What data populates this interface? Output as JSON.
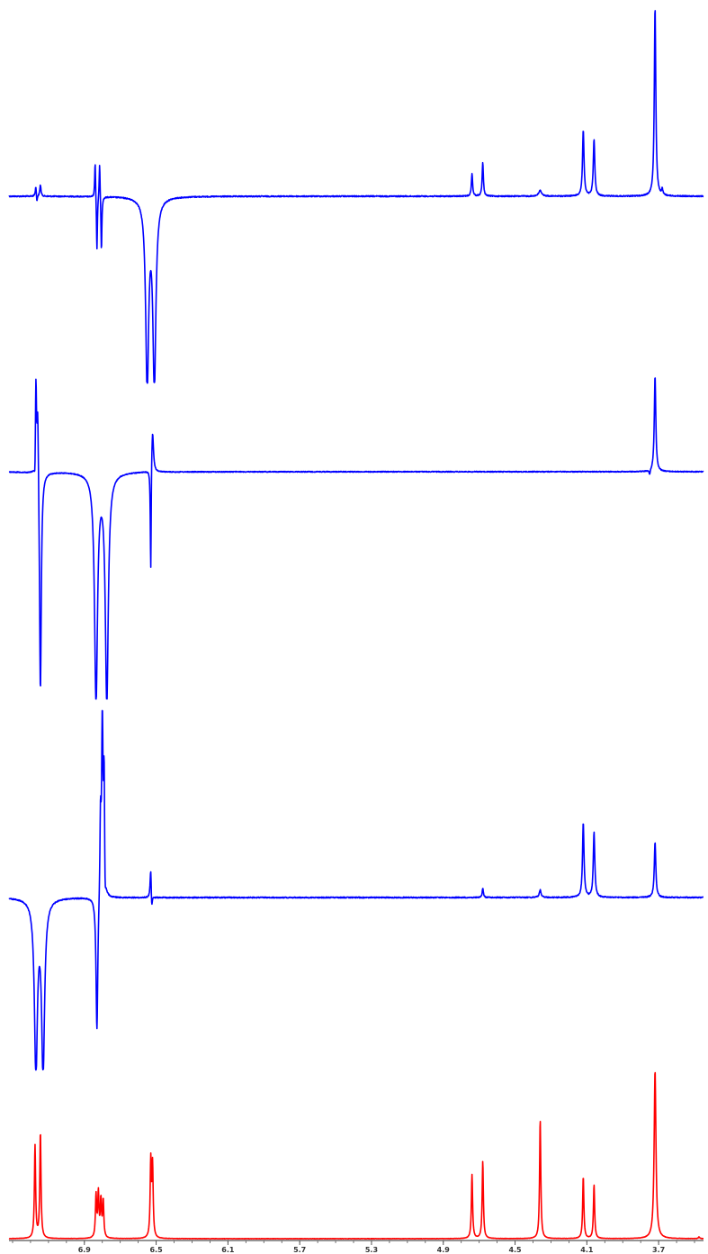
{
  "chart_data": {
    "type": "line",
    "title": "",
    "xlabel": "",
    "ylabel": "",
    "x_axis": {
      "reversed": true,
      "xlim": [
        7.32,
        3.45
      ],
      "tick_values": [
        6.9,
        6.5,
        6.1,
        5.7,
        5.3,
        4.9,
        4.5,
        4.1,
        3.7
      ],
      "tick_labels": [
        "6.9",
        "6.5",
        "6.1",
        "5.7",
        "5.3",
        "4.9",
        "4.5",
        "4.1",
        "3.7"
      ]
    },
    "grid": false,
    "legend": "none",
    "colors": {
      "spectrum_1d": "#ff0000",
      "nOe_difference": "#0000ff",
      "axis": "#555555"
    },
    "series": [
      {
        "kind": "selective_1D_difference",
        "color": "#0000ff",
        "peaks": [
          {
            "ppm": 7.17,
            "height": 0.06,
            "width": 0.004
          },
          {
            "ppm": 7.145,
            "height": 0.06,
            "width": 0.004
          },
          {
            "ppm": 7.165,
            "height": -0.05,
            "width": 0.003
          },
          {
            "ppm": 6.84,
            "height": 0.2,
            "width": 0.003
          },
          {
            "ppm": 6.815,
            "height": 0.2,
            "width": 0.003
          },
          {
            "ppm": 6.83,
            "height": -0.3,
            "width": 0.003
          },
          {
            "ppm": 6.805,
            "height": -0.3,
            "width": 0.003
          },
          {
            "ppm": 6.55,
            "height": -1.0,
            "width": 0.01
          },
          {
            "ppm": 6.51,
            "height": -1.0,
            "width": 0.01
          },
          {
            "ppm": 4.74,
            "height": 0.12,
            "width": 0.004
          },
          {
            "ppm": 4.68,
            "height": 0.18,
            "width": 0.004
          },
          {
            "ppm": 4.36,
            "height": 0.03,
            "width": 0.01
          },
          {
            "ppm": 4.12,
            "height": 0.35,
            "width": 0.005
          },
          {
            "ppm": 4.06,
            "height": 0.3,
            "width": 0.005
          },
          {
            "ppm": 3.72,
            "height": 1.0,
            "width": 0.005
          },
          {
            "ppm": 3.68,
            "height": 0.03,
            "width": 0.004
          }
        ]
      },
      {
        "kind": "selective_1D_difference",
        "color": "#0000ff",
        "peaks": [
          {
            "ppm": 7.17,
            "height": 0.7,
            "width": 0.004
          },
          {
            "ppm": 7.16,
            "height": 0.45,
            "width": 0.004
          },
          {
            "ppm": 7.175,
            "height": -0.2,
            "width": 0.004
          },
          {
            "ppm": 7.145,
            "height": -1.0,
            "width": 0.006
          },
          {
            "ppm": 6.835,
            "height": -1.0,
            "width": 0.01
          },
          {
            "ppm": 6.775,
            "height": -1.0,
            "width": 0.01
          },
          {
            "ppm": 6.52,
            "height": 0.3,
            "width": 0.006
          },
          {
            "ppm": 6.53,
            "height": -0.5,
            "width": 0.003
          },
          {
            "ppm": 3.72,
            "height": 0.65,
            "width": 0.005
          },
          {
            "ppm": 3.75,
            "height": -0.03,
            "width": 0.004
          }
        ]
      },
      {
        "kind": "selective_1D_difference",
        "color": "#0000ff",
        "peaks": [
          {
            "ppm": 7.17,
            "height": -1.0,
            "width": 0.01
          },
          {
            "ppm": 7.13,
            "height": -1.0,
            "width": 0.01
          },
          {
            "ppm": 6.8,
            "height": 1.0,
            "width": 0.004
          },
          {
            "ppm": 6.79,
            "height": 0.7,
            "width": 0.004
          },
          {
            "ppm": 6.81,
            "height": 0.45,
            "width": 0.004
          },
          {
            "ppm": 6.83,
            "height": -0.8,
            "width": 0.006
          },
          {
            "ppm": 6.785,
            "height": -0.2,
            "width": 0.004
          },
          {
            "ppm": 6.53,
            "height": 0.18,
            "width": 0.004
          },
          {
            "ppm": 6.525,
            "height": -0.1,
            "width": 0.004
          },
          {
            "ppm": 4.68,
            "height": 0.05,
            "width": 0.004
          },
          {
            "ppm": 4.36,
            "height": 0.04,
            "width": 0.006
          },
          {
            "ppm": 4.12,
            "height": 0.4,
            "width": 0.005
          },
          {
            "ppm": 4.06,
            "height": 0.35,
            "width": 0.005
          },
          {
            "ppm": 3.72,
            "height": 0.3,
            "width": 0.005
          }
        ]
      },
      {
        "kind": "1D_reference",
        "color": "#ff0000",
        "peaks": [
          {
            "ppm": 7.175,
            "height": 0.55,
            "width": 0.004
          },
          {
            "ppm": 7.145,
            "height": 0.63,
            "width": 0.004
          },
          {
            "ppm": 6.835,
            "height": 0.25,
            "width": 0.004
          },
          {
            "ppm": 6.822,
            "height": 0.26,
            "width": 0.004
          },
          {
            "ppm": 6.808,
            "height": 0.22,
            "width": 0.004
          },
          {
            "ppm": 6.795,
            "height": 0.22,
            "width": 0.004
          },
          {
            "ppm": 6.53,
            "height": 0.45,
            "width": 0.004
          },
          {
            "ppm": 6.52,
            "height": 0.42,
            "width": 0.004
          },
          {
            "ppm": 4.74,
            "height": 0.38,
            "width": 0.004
          },
          {
            "ppm": 4.68,
            "height": 0.46,
            "width": 0.004
          },
          {
            "ppm": 4.36,
            "height": 0.71,
            "width": 0.004
          },
          {
            "ppm": 4.12,
            "height": 0.37,
            "width": 0.004
          },
          {
            "ppm": 4.06,
            "height": 0.32,
            "width": 0.004
          },
          {
            "ppm": 3.72,
            "height": 1.0,
            "width": 0.006
          },
          {
            "ppm": 3.475,
            "height": 0.01,
            "width": 0.004
          }
        ]
      }
    ]
  }
}
